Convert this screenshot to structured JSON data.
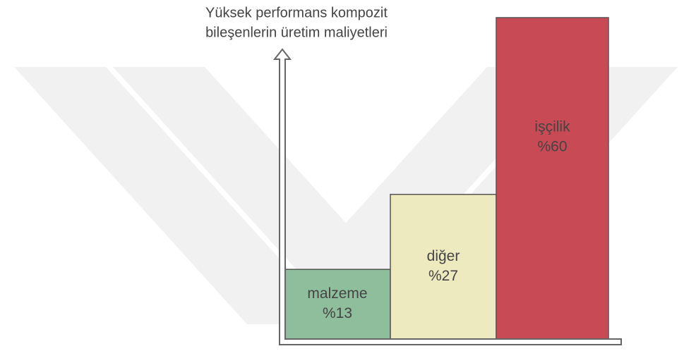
{
  "chart_data": {
    "type": "bar",
    "ylabel": [
      "Yüksek performans kompozit",
      "bileşenlerin üretim maliyetleri"
    ],
    "categories": [
      "malzeme",
      "diğer",
      "işçilik"
    ],
    "values": [
      13,
      27,
      60
    ],
    "value_labels": [
      "%13",
      "%27",
      "%60"
    ],
    "colors": [
      "#8fbe9c",
      "#eeeac0",
      "#c84a55"
    ],
    "ylim": [
      0,
      60
    ]
  }
}
